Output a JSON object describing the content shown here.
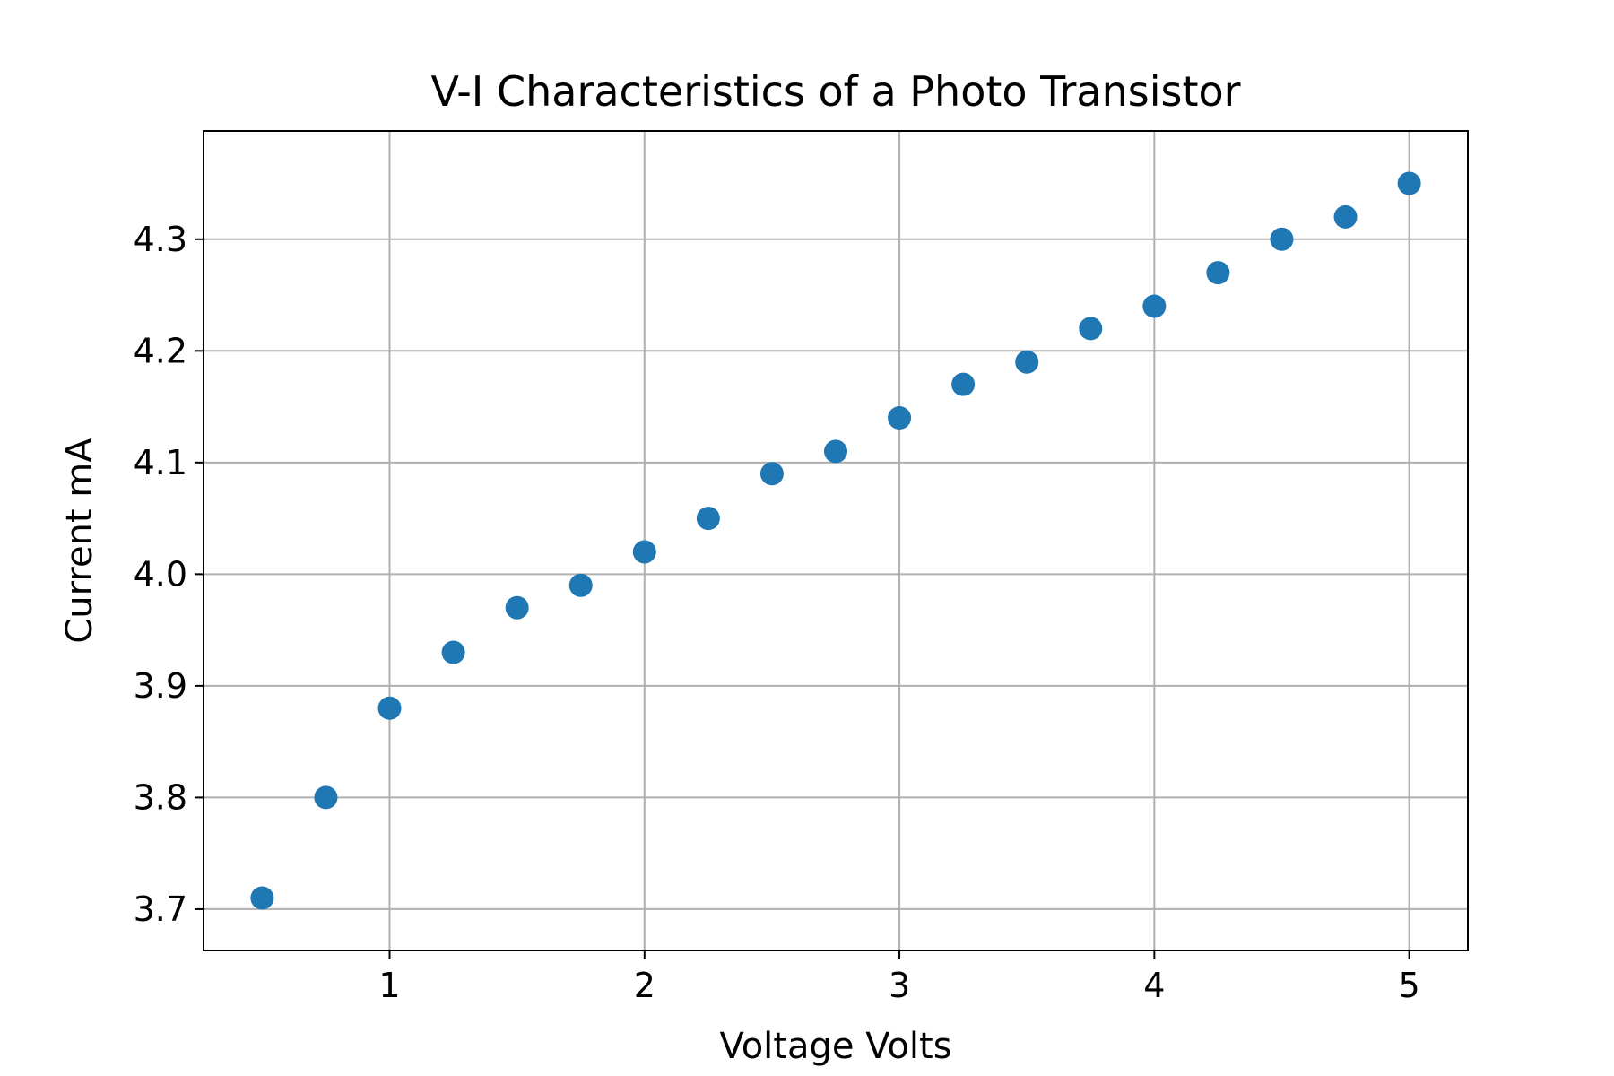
{
  "chart_data": {
    "type": "scatter",
    "title": "V-I Characteristics of a Photo Transistor",
    "xlabel": "Voltage Volts",
    "ylabel": "Current mA",
    "xlim": [
      0.27,
      5.23
    ],
    "ylim": [
      3.663,
      4.397
    ],
    "xticks": [
      1,
      2,
      3,
      4,
      5
    ],
    "xtick_labels": [
      "1",
      "2",
      "3",
      "4",
      "5"
    ],
    "yticks": [
      3.7,
      3.8,
      3.9,
      4.0,
      4.1,
      4.2,
      4.3
    ],
    "ytick_labels": [
      "3.7",
      "3.8",
      "3.9",
      "4.0",
      "4.1",
      "4.2",
      "4.3"
    ],
    "grid": true,
    "legend": "none",
    "marker_color": "#1f77b4",
    "points": [
      {
        "x": 0.5,
        "y": 3.71
      },
      {
        "x": 0.75,
        "y": 3.8
      },
      {
        "x": 1.0,
        "y": 3.88
      },
      {
        "x": 1.25,
        "y": 3.93
      },
      {
        "x": 1.5,
        "y": 3.97
      },
      {
        "x": 1.75,
        "y": 3.99
      },
      {
        "x": 2.0,
        "y": 4.02
      },
      {
        "x": 2.25,
        "y": 4.05
      },
      {
        "x": 2.5,
        "y": 4.09
      },
      {
        "x": 2.75,
        "y": 4.11
      },
      {
        "x": 3.0,
        "y": 4.14
      },
      {
        "x": 3.25,
        "y": 4.17
      },
      {
        "x": 3.5,
        "y": 4.19
      },
      {
        "x": 3.75,
        "y": 4.22
      },
      {
        "x": 4.0,
        "y": 4.24
      },
      {
        "x": 4.25,
        "y": 4.27
      },
      {
        "x": 4.5,
        "y": 4.3
      },
      {
        "x": 4.75,
        "y": 4.32
      },
      {
        "x": 5.0,
        "y": 4.35
      }
    ]
  }
}
